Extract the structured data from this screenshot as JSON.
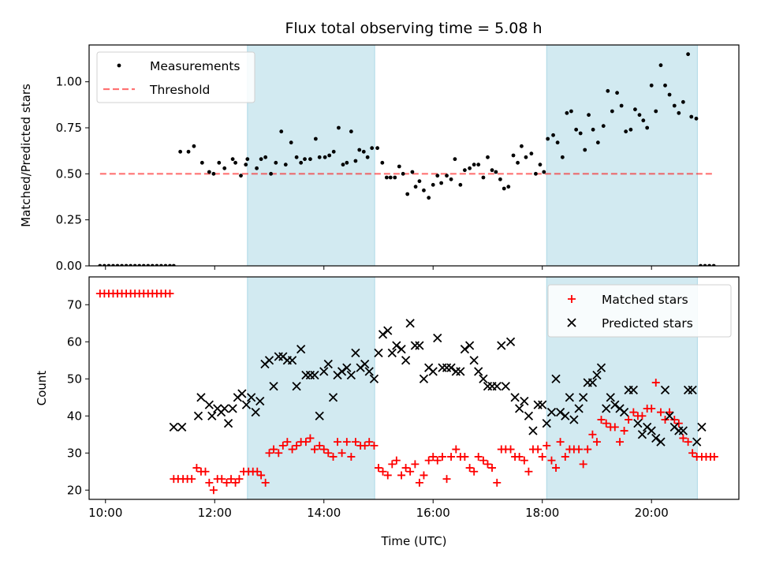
{
  "title": "Flux total observing time = 5.08 h",
  "colors": {
    "shade": "#add8e6",
    "threshold": "#ff0000",
    "measurements": "#000000",
    "matched": "#ff0000",
    "predicted": "#000000"
  },
  "chart_data": [
    {
      "type": "scatter",
      "ylabel": "Matched/Predicted stars",
      "xlim": [
        9.7,
        21.6
      ],
      "ylim": [
        0,
        1.2
      ],
      "yticks": [
        0.0,
        0.25,
        0.5,
        0.75,
        1.0
      ],
      "ytick_labels": [
        "0.00",
        "0.25",
        "0.50",
        "0.75",
        "1.00"
      ],
      "grid": false,
      "legend": {
        "position": "top-left",
        "entries": [
          "Measurements",
          "Threshold"
        ]
      },
      "shaded_regions": [
        [
          12.6,
          14.93
        ],
        [
          18.08,
          20.84
        ]
      ],
      "threshold": {
        "name": "Threshold",
        "y": 0.5,
        "x_range": [
          9.9,
          21.15
        ],
        "style": "dashed"
      },
      "series": [
        {
          "name": "Measurements",
          "marker": "dot",
          "x": [
            9.9,
            9.98,
            10.06,
            10.14,
            10.22,
            10.3,
            10.38,
            10.46,
            10.54,
            10.62,
            10.7,
            10.78,
            10.86,
            10.94,
            11.02,
            11.1,
            11.18,
            11.25,
            11.37,
            11.52,
            11.62,
            11.77,
            11.9,
            11.98,
            12.08,
            12.18,
            12.33,
            12.38,
            12.48,
            12.57,
            12.6,
            12.77,
            12.85,
            12.93,
            13.03,
            13.12,
            13.22,
            13.3,
            13.4,
            13.5,
            13.58,
            13.65,
            13.75,
            13.85,
            13.92,
            14.02,
            14.1,
            14.18,
            14.27,
            14.35,
            14.42,
            14.5,
            14.58,
            14.65,
            14.73,
            14.8,
            14.88,
            14.98,
            15.07,
            15.15,
            15.22,
            15.3,
            15.38,
            15.45,
            15.53,
            15.62,
            15.68,
            15.75,
            15.83,
            15.92,
            16.0,
            16.08,
            16.15,
            16.25,
            16.33,
            16.4,
            16.5,
            16.58,
            16.67,
            16.75,
            16.83,
            16.92,
            17.0,
            17.08,
            17.15,
            17.23,
            17.3,
            17.38,
            17.47,
            17.55,
            17.62,
            17.7,
            17.8,
            17.88,
            17.96,
            18.03,
            18.1,
            18.2,
            18.28,
            18.37,
            18.45,
            18.53,
            18.62,
            18.7,
            18.78,
            18.85,
            18.93,
            19.02,
            19.12,
            19.2,
            19.28,
            19.37,
            19.45,
            19.53,
            19.62,
            19.7,
            19.78,
            19.85,
            19.92,
            20.0,
            20.08,
            20.17,
            20.25,
            20.33,
            20.42,
            20.5,
            20.58,
            20.67,
            20.73,
            20.82,
            20.9,
            20.98,
            21.06,
            21.14
          ],
          "y": [
            0.0,
            0.0,
            0.0,
            0.0,
            0.0,
            0.0,
            0.0,
            0.0,
            0.0,
            0.0,
            0.0,
            0.0,
            0.0,
            0.0,
            0.0,
            0.0,
            0.0,
            0.0,
            0.62,
            0.62,
            0.65,
            0.56,
            0.51,
            0.5,
            0.56,
            0.53,
            0.58,
            0.56,
            0.49,
            0.55,
            0.58,
            0.53,
            0.58,
            0.59,
            0.5,
            0.56,
            0.73,
            0.55,
            0.67,
            0.59,
            0.56,
            0.58,
            0.58,
            0.69,
            0.59,
            0.59,
            0.6,
            0.62,
            0.75,
            0.55,
            0.56,
            0.73,
            0.57,
            0.63,
            0.62,
            0.59,
            0.64,
            0.64,
            0.56,
            0.48,
            0.48,
            0.48,
            0.54,
            0.5,
            0.39,
            0.51,
            0.43,
            0.46,
            0.41,
            0.37,
            0.44,
            0.49,
            0.45,
            0.49,
            0.47,
            0.58,
            0.44,
            0.52,
            0.53,
            0.55,
            0.55,
            0.48,
            0.59,
            0.52,
            0.51,
            0.47,
            0.42,
            0.43,
            0.6,
            0.56,
            0.65,
            0.59,
            0.61,
            0.5,
            0.55,
            0.51,
            0.69,
            0.71,
            0.67,
            0.59,
            0.83,
            0.84,
            0.74,
            0.72,
            0.63,
            0.82,
            0.74,
            0.67,
            0.76,
            0.95,
            0.84,
            0.94,
            0.87,
            0.73,
            0.74,
            0.85,
            0.82,
            0.79,
            0.75,
            0.98,
            0.84,
            1.09,
            0.98,
            0.93,
            0.87,
            0.83,
            0.89,
            1.15,
            0.81,
            0.8,
            0.0,
            0.0,
            0.0,
            0.0
          ]
        }
      ]
    },
    {
      "type": "scatter",
      "xlabel": "Time (UTC)",
      "ylabel": "Count",
      "xlim": [
        9.7,
        21.6
      ],
      "ylim": [
        17.5,
        77.5
      ],
      "yticks": [
        20,
        30,
        40,
        50,
        60,
        70
      ],
      "xticks": [
        10,
        12,
        14,
        16,
        18,
        20
      ],
      "xtick_labels": [
        "10:00",
        "12:00",
        "14:00",
        "16:00",
        "18:00",
        "20:00"
      ],
      "grid": false,
      "legend": {
        "position": "top-right",
        "entries": [
          "Matched stars",
          "Predicted stars"
        ]
      },
      "shaded_regions": [
        [
          12.6,
          14.93
        ],
        [
          18.08,
          20.84
        ]
      ],
      "series": [
        {
          "name": "Matched stars",
          "marker": "plus",
          "x": [
            9.9,
            9.98,
            10.06,
            10.14,
            10.22,
            10.3,
            10.38,
            10.46,
            10.54,
            10.62,
            10.7,
            10.78,
            10.86,
            10.94,
            11.02,
            11.1,
            11.18,
            11.25,
            11.33,
            11.42,
            11.5,
            11.58,
            11.67,
            11.75,
            11.83,
            11.9,
            11.98,
            12.05,
            12.13,
            12.22,
            12.3,
            12.38,
            12.45,
            12.53,
            12.62,
            12.7,
            12.78,
            12.85,
            12.93,
            13.0,
            13.08,
            13.17,
            13.25,
            13.33,
            13.42,
            13.5,
            13.58,
            13.67,
            13.75,
            13.83,
            13.92,
            14.0,
            14.08,
            14.17,
            14.25,
            14.33,
            14.42,
            14.5,
            14.58,
            14.67,
            14.75,
            14.83,
            14.92,
            15.0,
            15.08,
            15.17,
            15.25,
            15.33,
            15.42,
            15.5,
            15.58,
            15.67,
            15.75,
            15.83,
            15.92,
            16.0,
            16.08,
            16.17,
            16.25,
            16.33,
            16.42,
            16.5,
            16.58,
            16.67,
            16.75,
            16.83,
            16.92,
            17.0,
            17.08,
            17.17,
            17.25,
            17.33,
            17.42,
            17.5,
            17.58,
            17.67,
            17.75,
            17.83,
            17.92,
            18.0,
            18.08,
            18.17,
            18.25,
            18.33,
            18.42,
            18.5,
            18.58,
            18.67,
            18.75,
            18.83,
            18.92,
            19.0,
            19.08,
            19.17,
            19.25,
            19.33,
            19.42,
            19.5,
            19.58,
            19.67,
            19.75,
            19.83,
            19.92,
            20.0,
            20.08,
            20.17,
            20.25,
            20.33,
            20.42,
            20.5,
            20.58,
            20.67,
            20.75,
            20.83,
            20.92,
            21.0,
            21.08,
            21.15
          ],
          "y": [
            73,
            73,
            73,
            73,
            73,
            73,
            73,
            73,
            73,
            73,
            73,
            73,
            73,
            73,
            73,
            73,
            73,
            23,
            23,
            23,
            23,
            23,
            26,
            25,
            25,
            22,
            20,
            23,
            23,
            22,
            23,
            22,
            23,
            25,
            25,
            25,
            25,
            24,
            22,
            30,
            31,
            30,
            32,
            33,
            31,
            32,
            33,
            33,
            34,
            31,
            32,
            31,
            30,
            29,
            33,
            30,
            33,
            29,
            33,
            32,
            32,
            33,
            32,
            26,
            25,
            24,
            27,
            28,
            24,
            26,
            25,
            27,
            22,
            24,
            28,
            29,
            28,
            29,
            23,
            29,
            31,
            29,
            29,
            26,
            25,
            29,
            28,
            27,
            26,
            22,
            31,
            31,
            31,
            29,
            29,
            28,
            25,
            31,
            31,
            29,
            32,
            28,
            26,
            33,
            29,
            31,
            31,
            31,
            27,
            31,
            35,
            33,
            39,
            38,
            37,
            37,
            33,
            36,
            39,
            41,
            40,
            40,
            42,
            42,
            49,
            41,
            39,
            41,
            39,
            38,
            34,
            33,
            30,
            29,
            29,
            29,
            29,
            29
          ]
        },
        {
          "name": "Predicted stars",
          "marker": "x",
          "x": [
            11.25,
            11.4,
            11.7,
            11.75,
            11.9,
            11.95,
            12.05,
            12.12,
            12.18,
            12.25,
            12.33,
            12.42,
            12.5,
            12.58,
            12.67,
            12.75,
            12.83,
            12.92,
            13.0,
            13.08,
            13.17,
            13.25,
            13.33,
            13.42,
            13.5,
            13.58,
            13.67,
            13.75,
            13.83,
            13.92,
            14.0,
            14.08,
            14.17,
            14.25,
            14.33,
            14.42,
            14.5,
            14.58,
            14.67,
            14.75,
            14.83,
            14.92,
            15.0,
            15.08,
            15.17,
            15.25,
            15.33,
            15.42,
            15.5,
            15.58,
            15.67,
            15.75,
            15.83,
            15.92,
            16.0,
            16.08,
            16.17,
            16.25,
            16.33,
            16.42,
            16.5,
            16.58,
            16.67,
            16.75,
            16.83,
            16.92,
            17.0,
            17.08,
            17.17,
            17.25,
            17.33,
            17.42,
            17.5,
            17.58,
            17.67,
            17.75,
            17.83,
            17.92,
            18.0,
            18.08,
            18.17,
            18.25,
            18.33,
            18.42,
            18.5,
            18.58,
            18.67,
            18.75,
            18.83,
            18.92,
            19.0,
            19.08,
            19.17,
            19.25,
            19.33,
            19.42,
            19.5,
            19.58,
            19.67,
            19.75,
            19.83,
            19.92,
            20.0,
            20.08,
            20.17,
            20.25,
            20.33,
            20.42,
            20.5,
            20.58,
            20.67,
            20.75,
            20.83,
            20.92
          ],
          "y": [
            37,
            37,
            40,
            45,
            43,
            40,
            42,
            41,
            42,
            38,
            42,
            45,
            46,
            43,
            45,
            41,
            44,
            54,
            55,
            48,
            56,
            56,
            55,
            55,
            48,
            58,
            51,
            51,
            51,
            40,
            52,
            54,
            45,
            51,
            52,
            53,
            51,
            57,
            53,
            54,
            52,
            50,
            57,
            62,
            63,
            57,
            59,
            58,
            55,
            65,
            59,
            59,
            50,
            53,
            52,
            61,
            53,
            53,
            53,
            52,
            52,
            58,
            59,
            55,
            52,
            50,
            48,
            48,
            48,
            59,
            48,
            60,
            45,
            42,
            44,
            40,
            36,
            43,
            43,
            38,
            41,
            50,
            41,
            40,
            45,
            39,
            42,
            45,
            49,
            49,
            51,
            53,
            42,
            45,
            43,
            42,
            41,
            47,
            47,
            38,
            35,
            37,
            36,
            34,
            33,
            47,
            40,
            37,
            36,
            36,
            47,
            47,
            33,
            37
          ]
        }
      ]
    }
  ]
}
